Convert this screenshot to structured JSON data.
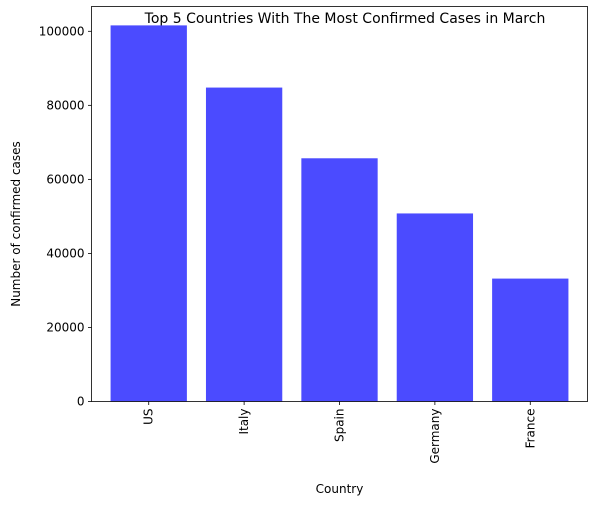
{
  "chart_data": {
    "type": "bar",
    "title": "Top 5 Countries With The Most Confirmed Cases in March",
    "xlabel": "Country",
    "ylabel": "Number of confirmed cases",
    "categories": [
      "US",
      "Italy",
      "Spain",
      "Germany",
      "France"
    ],
    "values": [
      101600,
      84800,
      65700,
      50800,
      33200
    ],
    "ylim": [
      0,
      106700
    ],
    "yticks": [
      0,
      20000,
      40000,
      60000,
      80000,
      100000
    ],
    "ytick_labels": [
      "0",
      "20000",
      "40000",
      "60000",
      "80000",
      "100000"
    ],
    "grid": false,
    "legend": "none",
    "bar_color": "#4b4bff",
    "xtick_rotation": "vertical"
  }
}
